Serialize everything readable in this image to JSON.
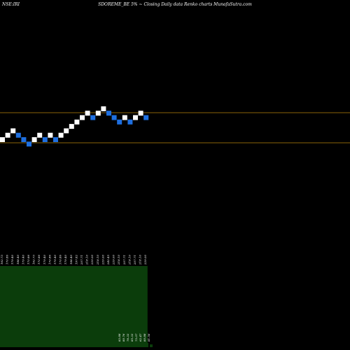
{
  "header": {
    "symbol": "NSE:IRI",
    "title": "SDOREME_BE 5% ~  Closing Daily data  Renko  charts MunafaSutra.com"
  },
  "colors": {
    "background": "#000000",
    "up_brick": "#ffffff",
    "down_brick": "#1e6fe0",
    "level_line": "#b8860b",
    "volume_area": "#0b3d0b"
  },
  "chart_data": {
    "type": "renko",
    "brick_size_percent": 5,
    "level_lines": [
      {
        "value": "upper"
      },
      {
        "value": "lower"
      }
    ],
    "bricks": [
      {
        "dir": "up",
        "level": 0
      },
      {
        "dir": "up",
        "level": 1
      },
      {
        "dir": "up",
        "level": 2
      },
      {
        "dir": "down",
        "level": 1
      },
      {
        "dir": "down",
        "level": 0
      },
      {
        "dir": "down",
        "level": -1
      },
      {
        "dir": "up",
        "level": 0
      },
      {
        "dir": "up",
        "level": 1
      },
      {
        "dir": "down",
        "level": 0
      },
      {
        "dir": "up",
        "level": 1
      },
      {
        "dir": "down",
        "level": 0
      },
      {
        "dir": "up",
        "level": 1
      },
      {
        "dir": "up",
        "level": 2
      },
      {
        "dir": "up",
        "level": 3
      },
      {
        "dir": "up",
        "level": 4
      },
      {
        "dir": "up",
        "level": 5
      },
      {
        "dir": "up",
        "level": 6
      },
      {
        "dir": "down",
        "level": 5
      },
      {
        "dir": "up",
        "level": 6
      },
      {
        "dir": "up",
        "level": 7
      },
      {
        "dir": "down",
        "level": 6
      },
      {
        "dir": "down",
        "level": 5
      },
      {
        "dir": "down",
        "level": 4
      },
      {
        "dir": "up",
        "level": 5
      },
      {
        "dir": "down",
        "level": 4
      },
      {
        "dir": "up",
        "level": 5
      },
      {
        "dir": "up",
        "level": 6
      },
      {
        "dir": "down",
        "level": 5
      }
    ],
    "price_labels": [
      "162.73",
      "170.86",
      "179.40",
      "188.40",
      "179.40",
      "170.86",
      "162.73",
      "170.86",
      "179.40",
      "170.86",
      "179.40",
      "170.86",
      "179.40",
      "188.40",
      "197.82",
      "207.71",
      "218.10",
      "229.00",
      "218.10",
      "229.00",
      "240.45",
      "229.00",
      "218.10",
      "207.71",
      "218.10",
      "207.71",
      "218.10",
      "229.00"
    ],
    "volume_labels": [
      "83.88",
      "80.76",
      "76.33",
      "85.33",
      "73.07",
      "62.47",
      "80.88",
      "81.56"
    ],
    "volume_area_bricks": 28
  }
}
